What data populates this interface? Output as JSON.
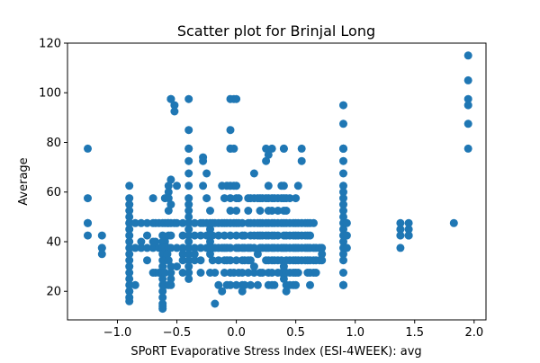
{
  "chart_data": {
    "type": "scatter",
    "title": "Scatter plot for Brinjal Long",
    "xlabel": "SPoRT Evaporative Stress Index (ESI-4WEEK): avg",
    "ylabel": "Average",
    "xlim": [
      -1.42,
      2.1
    ],
    "ylim": [
      8.5,
      120
    ],
    "xticks": [
      -1.0,
      -0.5,
      0.0,
      0.5,
      1.0,
      1.5,
      2.0
    ],
    "xtick_labels": [
      "−1.0",
      "−0.5",
      "0.0",
      "0.5",
      "1.0",
      "1.5",
      "2.0"
    ],
    "yticks": [
      20,
      40,
      60,
      80,
      100,
      120
    ],
    "ytick_labels": [
      "20",
      "40",
      "60",
      "80",
      "100",
      "120"
    ],
    "grid": false,
    "legend": "none",
    "marker_color": "#1f77b4",
    "series": [
      {
        "x": [
          -1.25,
          -1.25,
          -1.25,
          -1.25,
          -1.25,
          -1.13,
          -1.13,
          -1.13,
          -1.13,
          -0.9,
          -0.9,
          -0.9,
          -0.9,
          -0.9,
          -0.9,
          -0.9,
          -0.9,
          -0.9,
          -0.9,
          -0.9,
          -0.9,
          -0.9,
          -0.9,
          -0.9,
          -0.9,
          -0.9,
          -0.9,
          -0.9,
          -0.9,
          -0.9,
          -0.85,
          -0.85,
          -0.85,
          -0.8,
          -0.8,
          -0.8,
          -0.75,
          -0.75,
          -0.75,
          -0.75,
          -0.7,
          -0.7,
          -0.7,
          -0.7,
          -0.7,
          -0.68,
          -0.68,
          -0.68,
          -0.65,
          -0.65,
          -0.65,
          -0.62,
          -0.62,
          -0.62,
          -0.62,
          -0.62,
          -0.62,
          -0.62,
          -0.62,
          -0.62,
          -0.62,
          -0.62,
          -0.62,
          -0.62,
          -0.62,
          -0.62,
          -0.6,
          -0.6,
          -0.6,
          -0.6,
          -0.6,
          -0.6,
          -0.6,
          -0.58,
          -0.58,
          -0.57,
          -0.57,
          -0.57,
          -0.57,
          -0.57,
          -0.57,
          -0.57,
          -0.57,
          -0.57,
          -0.55,
          -0.55,
          -0.55,
          -0.55,
          -0.55,
          -0.55,
          -0.55,
          -0.55,
          -0.55,
          -0.55,
          -0.55,
          -0.52,
          -0.52,
          -0.52,
          -0.5,
          -0.5,
          -0.5,
          -0.5,
          -0.45,
          -0.45,
          -0.45,
          -0.45,
          -0.45,
          -0.45,
          -0.4,
          -0.4,
          -0.4,
          -0.4,
          -0.4,
          -0.4,
          -0.4,
          -0.4,
          -0.4,
          -0.4,
          -0.4,
          -0.4,
          -0.4,
          -0.4,
          -0.4,
          -0.4,
          -0.4,
          -0.4,
          -0.4,
          -0.4,
          -0.4,
          -0.35,
          -0.35,
          -0.35,
          -0.35,
          -0.35,
          -0.3,
          -0.3,
          -0.3,
          -0.3,
          -0.3,
          -0.28,
          -0.28,
          -0.28,
          -0.28,
          -0.25,
          -0.25,
          -0.25,
          -0.25,
          -0.25,
          -0.22,
          -0.22,
          -0.22,
          -0.22,
          -0.22,
          -0.22,
          -0.22,
          -0.22,
          -0.2,
          -0.2,
          -0.2,
          -0.2,
          -0.18,
          -0.18,
          -0.18,
          -0.18,
          -0.15,
          -0.15,
          -0.15,
          -0.15,
          -0.15,
          -0.12,
          -0.12,
          -0.12,
          -0.12,
          -0.1,
          -0.1,
          -0.1,
          -0.1,
          -0.1,
          -0.1,
          -0.08,
          -0.08,
          -0.08,
          -0.08,
          -0.08,
          -0.05,
          -0.05,
          -0.05,
          -0.05,
          -0.05,
          -0.05,
          -0.05,
          -0.05,
          -0.05,
          -0.05,
          -0.05,
          -0.05,
          -0.05,
          -0.02,
          -0.02,
          -0.02,
          -0.02,
          -0.02,
          0.0,
          0.0,
          0.0,
          0.0,
          0.0,
          0.0,
          0.0,
          0.0,
          0.0,
          0.02,
          0.02,
          0.02,
          0.02,
          0.05,
          0.05,
          0.05,
          0.05,
          0.05,
          0.05,
          0.05,
          0.07,
          0.07,
          0.07,
          0.07,
          0.1,
          0.1,
          0.1,
          0.1,
          0.1,
          0.1,
          0.12,
          0.12,
          0.12,
          0.12,
          0.12,
          0.12,
          0.15,
          0.15,
          0.15,
          0.15,
          0.15,
          0.15,
          0.15,
          0.18,
          0.18,
          0.18,
          0.18,
          0.18,
          0.2,
          0.2,
          0.2,
          0.2,
          0.2,
          0.2,
          0.22,
          0.22,
          0.22,
          0.22,
          0.22,
          0.25,
          0.25,
          0.25,
          0.25,
          0.25,
          0.25,
          0.25,
          0.27,
          0.27,
          0.27,
          0.27,
          0.27,
          0.27,
          0.27,
          0.27,
          0.27,
          0.27,
          0.3,
          0.3,
          0.3,
          0.3,
          0.3,
          0.3,
          0.3,
          0.3,
          0.3,
          0.32,
          0.32,
          0.32,
          0.32,
          0.32,
          0.32,
          0.35,
          0.35,
          0.35,
          0.35,
          0.35,
          0.35,
          0.35,
          0.38,
          0.38,
          0.38,
          0.38,
          0.38,
          0.38,
          0.4,
          0.4,
          0.4,
          0.4,
          0.4,
          0.4,
          0.4,
          0.4,
          0.4,
          0.4,
          0.42,
          0.42,
          0.42,
          0.42,
          0.42,
          0.42,
          0.42,
          0.42,
          0.42,
          0.45,
          0.45,
          0.45,
          0.45,
          0.45,
          0.45,
          0.45,
          0.48,
          0.48,
          0.48,
          0.48,
          0.48,
          0.48,
          0.5,
          0.5,
          0.5,
          0.5,
          0.5,
          0.5,
          0.5,
          0.52,
          0.52,
          0.52,
          0.52,
          0.52,
          0.52,
          0.55,
          0.55,
          0.55,
          0.55,
          0.55,
          0.55,
          0.58,
          0.58,
          0.58,
          0.58,
          0.6,
          0.6,
          0.6,
          0.6,
          0.6,
          0.62,
          0.62,
          0.62,
          0.62,
          0.62,
          0.62,
          0.65,
          0.65,
          0.65,
          0.65,
          0.67,
          0.67,
          0.67,
          0.7,
          0.7,
          0.72,
          0.72,
          0.72,
          0.9,
          0.9,
          0.9,
          0.9,
          0.9,
          0.9,
          0.9,
          0.9,
          0.9,
          0.9,
          0.9,
          0.9,
          0.9,
          0.9,
          0.9,
          0.9,
          0.9,
          0.9,
          0.9,
          0.9,
          0.9,
          0.9,
          0.9,
          0.9,
          0.9,
          0.93,
          0.93,
          0.93,
          1.38,
          1.38,
          1.38,
          1.38,
          1.45,
          1.45,
          1.45,
          1.45,
          1.83,
          1.95,
          1.95,
          1.95,
          1.95,
          1.95,
          1.95
        ],
        "y": [
          77.5,
          57.5,
          47.5,
          47.5,
          42.5,
          42.5,
          37.5,
          37.5,
          35,
          62.5,
          57.5,
          55,
          52.5,
          50,
          47.5,
          47.5,
          45,
          42.5,
          40,
          37.5,
          35,
          32.5,
          30,
          27.5,
          25,
          22.5,
          20,
          20,
          17.5,
          16,
          47.5,
          37.5,
          22.5,
          47.5,
          40,
          37.5,
          47.5,
          42.5,
          37.5,
          32.5,
          57.5,
          47.5,
          40,
          37.5,
          27.5,
          47.5,
          40,
          27.5,
          47.5,
          37.5,
          27.5,
          47.5,
          42.5,
          40,
          37.5,
          35,
          32.5,
          30,
          27.5,
          25,
          22.5,
          20,
          17.5,
          15,
          14,
          13,
          57.5,
          47.5,
          40,
          37.5,
          32.5,
          27.5,
          22.5,
          47.5,
          35,
          62.5,
          60,
          57.5,
          52.5,
          47.5,
          42.5,
          37.5,
          32.5,
          22.5,
          97.5,
          97.5,
          65,
          55,
          47.5,
          42.5,
          37.5,
          30,
          27.5,
          25,
          22.5,
          95,
          92.5,
          47.5,
          62.5,
          47.5,
          37.5,
          30,
          47.5,
          42.5,
          37.5,
          35,
          32.5,
          27.5,
          97.5,
          85,
          77.5,
          77.5,
          72.5,
          67.5,
          62.5,
          57.5,
          55,
          52.5,
          50,
          47.5,
          45,
          42.5,
          40,
          37.5,
          35,
          32.5,
          30,
          27.5,
          25,
          47.5,
          42.5,
          37.5,
          35,
          32.5,
          47.5,
          42.5,
          37.5,
          32.5,
          27.5,
          74,
          72.5,
          62.5,
          47.5,
          67.5,
          57.5,
          47.5,
          42.5,
          37.5,
          52.5,
          47.5,
          45,
          42.5,
          40,
          37.5,
          35,
          27.5,
          47.5,
          42.5,
          37.5,
          32.5,
          47.5,
          37.5,
          27.5,
          15,
          47.5,
          42.5,
          37.5,
          32.5,
          22.5,
          62.5,
          47.5,
          37.5,
          20,
          57.5,
          47.5,
          42.5,
          37.5,
          32.5,
          27.5,
          62.5,
          47.5,
          37.5,
          32.5,
          22.5,
          97.5,
          85,
          77.5,
          77.5,
          62.5,
          57.5,
          52.5,
          47.5,
          42.5,
          37.5,
          32.5,
          27.5,
          22.5,
          97.5,
          77.5,
          62.5,
          47.5,
          27.5,
          97.5,
          62.5,
          57.5,
          52.5,
          47.5,
          42.5,
          37.5,
          32.5,
          22.5,
          57.5,
          47.5,
          37.5,
          27.5,
          47.5,
          42.5,
          37.5,
          32.5,
          27.5,
          22.5,
          20,
          42.5,
          37.5,
          32.5,
          22.5,
          57.5,
          52.5,
          47.5,
          37.5,
          32.5,
          27.5,
          57.5,
          47.5,
          42.5,
          37.5,
          32.5,
          22.5,
          67.5,
          57.5,
          47.5,
          42.5,
          37.5,
          30,
          27.5,
          57.5,
          47.5,
          42.5,
          35,
          22.5,
          57.5,
          52.5,
          47.5,
          42.5,
          37.5,
          27.5,
          57.5,
          47.5,
          42.5,
          37.5,
          27.5,
          77.5,
          72.5,
          57.5,
          47.5,
          42.5,
          37.5,
          32.5,
          75,
          62.5,
          57.5,
          52.5,
          47.5,
          42.5,
          37.5,
          32.5,
          27.5,
          22.5,
          77.5,
          57.5,
          52.5,
          47.5,
          42.5,
          37.5,
          32.5,
          27.5,
          22.5,
          57.5,
          47.5,
          42.5,
          37.5,
          32.5,
          22.5,
          57.5,
          52.5,
          47.5,
          42.5,
          37.5,
          32.5,
          27.5,
          62.5,
          57.5,
          47.5,
          37.5,
          32.5,
          27.5,
          77.5,
          77.5,
          62.5,
          57.5,
          52.5,
          47.5,
          42.5,
          37.5,
          30,
          25,
          57.5,
          52.5,
          47.5,
          42.5,
          37.5,
          32.5,
          27.5,
          22.5,
          20,
          57.5,
          47.5,
          42.5,
          37.5,
          32.5,
          27.5,
          22.5,
          47.5,
          42.5,
          37.5,
          32.5,
          27.5,
          22.5,
          57.5,
          47.5,
          42.5,
          37.5,
          32.5,
          27.5,
          22.5,
          62.5,
          47.5,
          42.5,
          37.5,
          32.5,
          27.5,
          77.5,
          72.5,
          47.5,
          42.5,
          37.5,
          32.5,
          47.5,
          42.5,
          37.5,
          32.5,
          47.5,
          42.5,
          37.5,
          32.5,
          27.5,
          47.5,
          42.5,
          37.5,
          32.5,
          27.5,
          22.5,
          47.5,
          37.5,
          32.5,
          27.5,
          37.5,
          32.5,
          27.5,
          37.5,
          32.5,
          37.5,
          35,
          32.5,
          95,
          87.5,
          77.5,
          77.5,
          77.5,
          77.5,
          72.5,
          67.5,
          62.5,
          60,
          57.5,
          55,
          52.5,
          50,
          47.5,
          45,
          42.5,
          40,
          37.5,
          35,
          32.5,
          27.5,
          22.5,
          22.5,
          22.5,
          47.5,
          42.5,
          37.5,
          47.5,
          45,
          42.5,
          37.5,
          47.5,
          45,
          42.5,
          42.5,
          47.5,
          115,
          105,
          97.5,
          95,
          87.5,
          77.5
        ]
      }
    ]
  }
}
